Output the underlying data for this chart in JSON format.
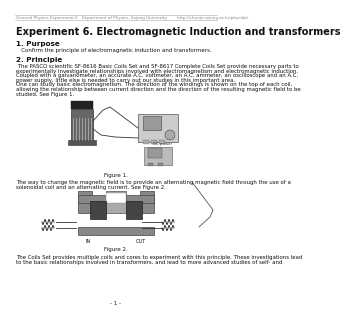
{
  "header_text": "General Physics Experiment 6   Department of Physics, Sejong University        http://chunjo.sejong.ac.kr/physlab/",
  "title": "Experiment 6. Electromagnetic Induction and transformers",
  "section1_title": "1. Purpose",
  "section1_body": "   Confirm the principle of electromagnetic induction and transformers.",
  "section2_title": "2. Principle",
  "section2_body_lines": [
    " The PASCO scientific SF-8616 Basic Coils Set and SF-8617 Complete Coils Set provide necessary parts to",
    "experimentally investigate relationships involved with electromagnetism and electromagnetic induction.",
    "Coupled with a galvanometer, an accurate A.C. voltmeter, an A.C. ammeter, an oscilloscope and an A.C.",
    "power supply, little else is needed to carry out our studies in this important area.",
    "One can study basic electromagnetism. The direction of the windings is shown on the top of each coil,",
    "allowing the relationship between current direction and the direction of the resulting magnetic field to be",
    "studied. See Figure 1."
  ],
  "figure1_caption": "Figure 1.",
  "section2_mid_lines": [
    "The way to change the magnetic field is to provide an alternating magnetic field through the use of a",
    "solenoidal coil and an alternating current. See Figure 2."
  ],
  "figure2_caption": "Figure 2.",
  "section2_end_lines": [
    "The Coils Set provides multiple coils and cores to experiment with this principle. These investigations lead",
    "to the basic relationships involved in transformers, and lead to more advanced studies of self- and"
  ],
  "page_number": "- 1 -",
  "background_color": "#ffffff",
  "text_color": "#111111",
  "header_color": "#555555",
  "title_color": "#111111"
}
